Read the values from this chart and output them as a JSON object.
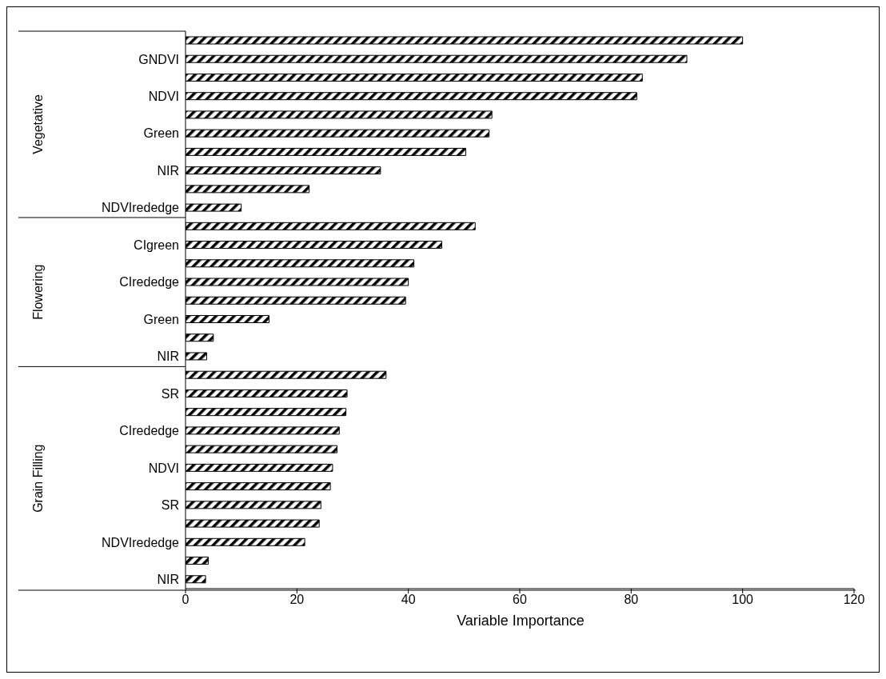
{
  "chart_data": {
    "type": "bar",
    "orientation": "horizontal",
    "xlabel": "Variable Importance",
    "categories": [
      null,
      "GNDVI",
      null,
      "NDVI",
      null,
      "Green",
      null,
      "NIR",
      null,
      "NDVIrededge",
      null,
      "CIgreen",
      null,
      "CIrededge",
      null,
      "Green",
      null,
      "NIR",
      null,
      "SR",
      null,
      "CIrededge",
      null,
      "NDVI",
      null,
      "SR",
      null,
      "NDVIrededge",
      null,
      "NIR"
    ],
    "values": [
      100,
      90,
      82,
      81,
      55,
      54.5,
      50.3,
      35,
      22.2,
      10,
      52,
      46,
      41,
      40,
      39.5,
      15,
      5,
      3.8,
      36,
      29,
      28.8,
      27.6,
      27.2,
      26.4,
      26,
      24.3,
      24,
      21.4,
      4.1,
      3.6
    ],
    "color": "#000000",
    "xlim": [
      0,
      120
    ],
    "xticks": [
      0,
      20,
      40,
      60,
      80,
      100,
      120
    ],
    "grid": false,
    "legend": false,
    "annotations": [
      "Vegetative",
      "Flowering",
      "Grain Filling"
    ]
  }
}
